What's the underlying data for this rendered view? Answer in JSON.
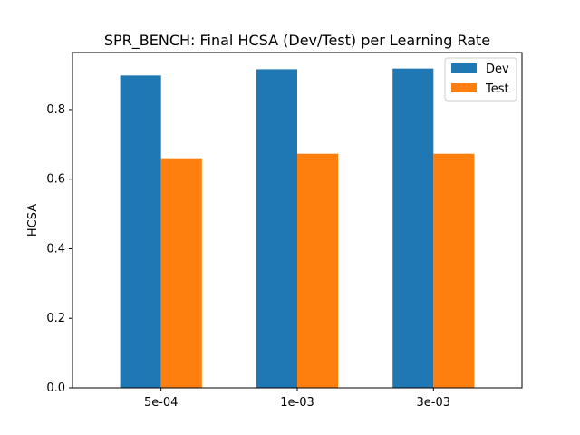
{
  "chart_data": {
    "type": "bar",
    "title": "SPR_BENCH: Final HCSA (Dev/Test) per Learning Rate",
    "xlabel": "",
    "ylabel": "HCSA",
    "categories": [
      "5e-04",
      "1e-03",
      "3e-03"
    ],
    "series": [
      {
        "name": "Dev",
        "color": "#1f77b4",
        "values": [
          0.898,
          0.916,
          0.918
        ]
      },
      {
        "name": "Test",
        "color": "#ff7f0e",
        "values": [
          0.66,
          0.673,
          0.673
        ]
      }
    ],
    "ylim": [
      0,
      0.964
    ],
    "yticks": [
      0.0,
      0.2,
      0.4,
      0.6,
      0.8
    ],
    "ytick_labels": [
      "0.0",
      "0.2",
      "0.4",
      "0.6",
      "0.8"
    ],
    "legend_position": "top-right",
    "grid": false
  }
}
